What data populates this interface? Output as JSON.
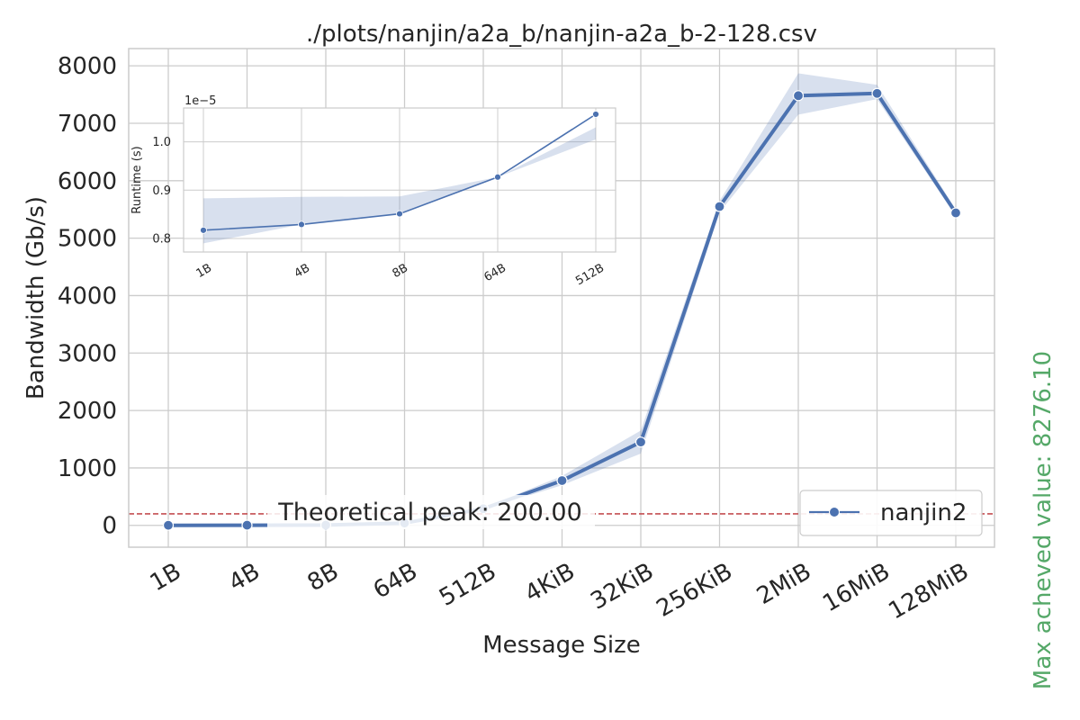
{
  "chart_data": [
    {
      "type": "line",
      "title": "./plots/nanjin/a2a_b/nanjin-a2a_b-2-128.csv",
      "xlabel": "Message Size",
      "ylabel": "Bandwidth (Gb/s)",
      "categories": [
        "1B",
        "4B",
        "8B",
        "64B",
        "512B",
        "4KiB",
        "32KiB",
        "256KiB",
        "2MiB",
        "16MiB",
        "128MiB"
      ],
      "yticks": [
        "0",
        "1000",
        "2000",
        "3000",
        "4000",
        "5000",
        "6000",
        "7000",
        "8000"
      ],
      "ylim": [
        -380,
        8300
      ],
      "series": [
        {
          "name": "nanjin2",
          "color": "#4c72b0",
          "values": [
            0.8,
            2.7,
            5.3,
            40,
            290,
            780,
            1450,
            5550,
            7480,
            7520,
            5440
          ],
          "ci_low": [
            0.7,
            2.5,
            5.0,
            38,
            275,
            700,
            1250,
            5450,
            7150,
            7420,
            5380
          ],
          "ci_high": [
            0.9,
            2.9,
            5.6,
            42,
            305,
            860,
            1650,
            5650,
            7870,
            7670,
            5500
          ]
        }
      ],
      "annotations": {
        "peak_line_value": 200,
        "peak_label": "Theoretical peak: 200.00",
        "peak_color": "#c44e52",
        "max_label": "Max acheved value: 8276.10",
        "max_color": "#55a868"
      },
      "grid": true,
      "legend_position": "lower-right"
    },
    {
      "type": "line",
      "inset": true,
      "ylabel": "Runtime (s)",
      "offset_label": "1e−5",
      "categories": [
        "1B",
        "4B",
        "8B",
        "64B",
        "512B"
      ],
      "yticks": [
        "0.8",
        "0.9",
        "1.0"
      ],
      "ylim": [
        0.772,
        1.07
      ],
      "series": [
        {
          "color": "#4c72b0",
          "values": [
            0.817,
            0.829,
            0.851,
            0.927,
            1.057
          ],
          "ci_low": [
            0.79,
            0.829,
            0.851,
            0.927,
            1.005
          ],
          "ci_high": [
            0.883,
            0.886,
            0.887,
            0.927,
            1.03
          ]
        }
      ],
      "grid": true
    }
  ]
}
